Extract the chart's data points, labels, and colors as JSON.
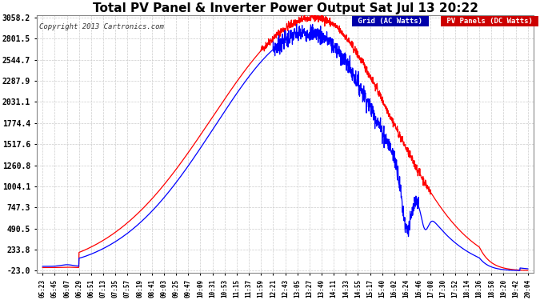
{
  "title": "Total PV Panel & Inverter Power Output Sat Jul 13 20:22",
  "copyright": "Copyright 2013 Cartronics.com",
  "yticks": [
    3058.2,
    2801.5,
    2544.7,
    2287.9,
    2031.1,
    1774.4,
    1517.6,
    1260.8,
    1004.1,
    747.3,
    490.5,
    233.8,
    -23.0
  ],
  "ymin": -23.0,
  "ymax": 3058.2,
  "bg_color": "#ffffff",
  "grid_color": "#cccccc",
  "line_blue_color": "#0000ff",
  "line_red_color": "#ff0000",
  "title_fontsize": 11,
  "legend_blue_bg": "#0000aa",
  "legend_red_bg": "#cc0000",
  "xtick_labels": [
    "05:23",
    "05:45",
    "06:07",
    "06:29",
    "06:51",
    "07:13",
    "07:35",
    "07:57",
    "08:19",
    "08:41",
    "09:03",
    "09:25",
    "09:47",
    "10:09",
    "10:31",
    "10:53",
    "11:15",
    "11:37",
    "11:59",
    "12:21",
    "12:43",
    "13:05",
    "13:27",
    "13:49",
    "14:11",
    "14:33",
    "14:55",
    "15:17",
    "15:40",
    "16:02",
    "16:24",
    "16:46",
    "17:08",
    "17:30",
    "17:52",
    "18:14",
    "18:36",
    "18:58",
    "19:20",
    "19:42",
    "20:04"
  ]
}
